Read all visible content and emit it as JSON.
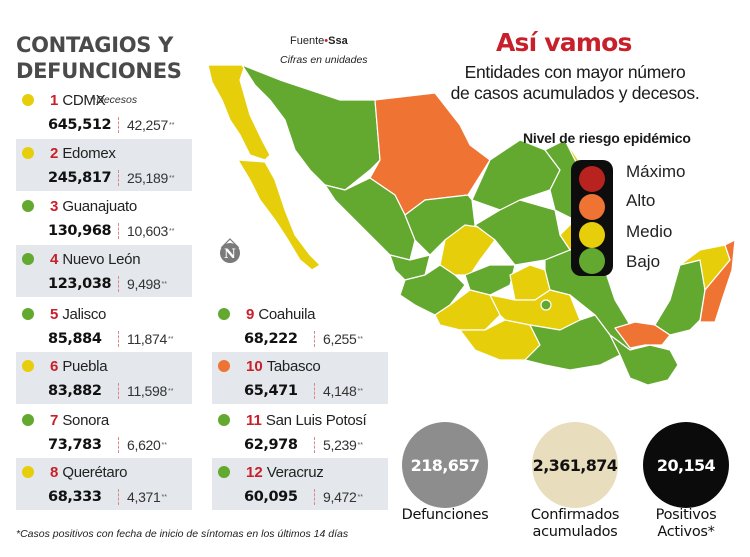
{
  "left_panel": {
    "title_line1": "CONTAGIOS Y",
    "title_line2": "DEFUNCIONES",
    "deaths_note_stars": "**",
    "deaths_note": "Decesos",
    "stars": "**"
  },
  "colors": {
    "maximo": "#b8231f",
    "alto": "#ef7433",
    "medio": "#e6cf0a",
    "bajo": "#63a82f",
    "rank_red": "#c8202a",
    "row_shade": "#e4e7eb"
  },
  "states": [
    {
      "rank": "1",
      "name": "CDMX",
      "cases": "645,512",
      "deaths": "42,257",
      "risk": "medio"
    },
    {
      "rank": "2",
      "name": "Edomex",
      "cases": "245,817",
      "deaths": "25,189",
      "risk": "medio"
    },
    {
      "rank": "3",
      "name": "Guanajuato",
      "cases": "130,968",
      "deaths": "10,603",
      "risk": "bajo"
    },
    {
      "rank": "4",
      "name": "Nuevo León",
      "cases": "123,038",
      "deaths": "9,498",
      "risk": "bajo"
    },
    {
      "rank": "5",
      "name": "Jalisco",
      "cases": "85,884",
      "deaths": "11,874",
      "risk": "bajo"
    },
    {
      "rank": "6",
      "name": "Puebla",
      "cases": "83,882",
      "deaths": "11,598",
      "risk": "medio"
    },
    {
      "rank": "7",
      "name": "Sonora",
      "cases": "73,783",
      "deaths": "6,620",
      "risk": "bajo"
    },
    {
      "rank": "8",
      "name": "Querétaro",
      "cases": "68,333",
      "deaths": "4,371",
      "risk": "medio"
    },
    {
      "rank": "9",
      "name": "Coahuila",
      "cases": "68,222",
      "deaths": "6,255",
      "risk": "bajo"
    },
    {
      "rank": "10",
      "name": "Tabasco",
      "cases": "65,471",
      "deaths": "4,148",
      "risk": "alto"
    },
    {
      "rank": "11",
      "name": "San Luis Potosí",
      "cases": "62,978",
      "deaths": "5,239",
      "risk": "bajo"
    },
    {
      "rank": "12",
      "name": "Veracruz",
      "cases": "60,095",
      "deaths": "9,472",
      "risk": "bajo"
    }
  ],
  "source": {
    "label": "Fuente",
    "bullet": "•",
    "value": "Ssa",
    "units": "Cifras en unidades"
  },
  "header": {
    "title": "Así vamos",
    "subtitle_line1": "Entidades con mayor número",
    "subtitle_line2": "de casos acumulados y decesos."
  },
  "legend": {
    "title": "Nivel de riesgo epidémico",
    "items": [
      {
        "label": "Máximo",
        "color": "#b8231f"
      },
      {
        "label": "Alto",
        "color": "#ef7433"
      },
      {
        "label": "Medio",
        "color": "#e6cf0a"
      },
      {
        "label": "Bajo",
        "color": "#63a82f"
      }
    ]
  },
  "map": {
    "north_label": "N"
  },
  "totals": [
    {
      "value": "218,657",
      "label_line1": "Defunciones",
      "label_line2": "",
      "bg": "#8d8d8d",
      "fg": "#ffffff"
    },
    {
      "value": "2,361,874",
      "label_line1": "Confirmados",
      "label_line2": "acumulados",
      "bg": "#e8ddbd",
      "fg": "#111111"
    },
    {
      "value": "20,154",
      "label_line1": "Positivos",
      "label_line2": "Activos*",
      "bg": "#0b0b0b",
      "fg": "#ffffff"
    }
  ],
  "footnote": "*Casos positivos con fecha de inicio de síntomas en los últimos 14 días"
}
